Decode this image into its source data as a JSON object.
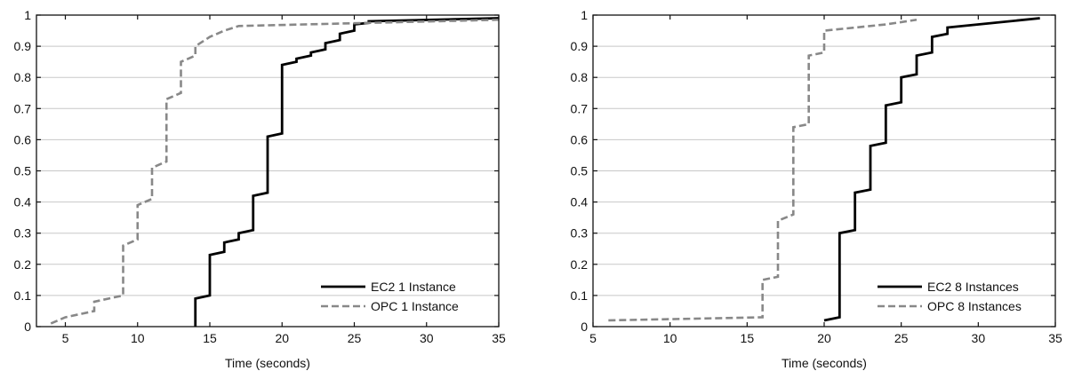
{
  "chart_data": [
    {
      "type": "line",
      "step": true,
      "xlabel": "Time (seconds)",
      "ylabel": "",
      "xlim": [
        3,
        35
      ],
      "ylim": [
        0,
        1
      ],
      "xticks": [
        5,
        10,
        15,
        20,
        25,
        30,
        35
      ],
      "yticks": [
        0,
        0.1,
        0.2,
        0.3,
        0.4,
        0.5,
        0.6,
        0.7,
        0.8,
        0.9,
        1
      ],
      "grid": "horizontal",
      "legend_position": "bottom-right",
      "series": [
        {
          "name": "EC2 1 Instance",
          "color": "#000000",
          "dash": "solid",
          "x": [
            14,
            14,
            15,
            15,
            16,
            16,
            17,
            17,
            18,
            18,
            19,
            19,
            20,
            20,
            21,
            21,
            22,
            22,
            23,
            23,
            24,
            24,
            25,
            25,
            26,
            26,
            35
          ],
          "y": [
            0,
            0.09,
            0.1,
            0.23,
            0.24,
            0.27,
            0.28,
            0.3,
            0.31,
            0.42,
            0.43,
            0.61,
            0.62,
            0.84,
            0.85,
            0.86,
            0.87,
            0.88,
            0.89,
            0.91,
            0.92,
            0.94,
            0.95,
            0.97,
            0.975,
            0.98,
            0.99
          ]
        },
        {
          "name": "OPC 1 Instance",
          "color": "#888888",
          "dash": "dashed",
          "x": [
            4,
            5,
            7,
            7,
            9,
            9,
            10,
            10,
            11,
            11,
            12,
            12,
            13,
            13,
            14,
            14,
            15,
            16,
            17,
            26,
            35
          ],
          "y": [
            0.01,
            0.03,
            0.05,
            0.08,
            0.1,
            0.26,
            0.28,
            0.39,
            0.41,
            0.51,
            0.53,
            0.73,
            0.75,
            0.85,
            0.87,
            0.9,
            0.93,
            0.95,
            0.965,
            0.975,
            0.985
          ]
        }
      ]
    },
    {
      "type": "line",
      "step": true,
      "xlabel": "Time (seconds)",
      "ylabel": "",
      "xlim": [
        5,
        35
      ],
      "ylim": [
        0,
        1
      ],
      "xticks": [
        5,
        10,
        15,
        20,
        25,
        30,
        35
      ],
      "yticks": [
        0,
        0.1,
        0.2,
        0.3,
        0.4,
        0.5,
        0.6,
        0.7,
        0.8,
        0.9,
        1
      ],
      "grid": "horizontal",
      "legend_position": "bottom-right",
      "series": [
        {
          "name": "EC2 8 Instances",
          "color": "#000000",
          "dash": "solid",
          "x": [
            20,
            21,
            21,
            22,
            22,
            23,
            23,
            24,
            24,
            25,
            25,
            26,
            26,
            27,
            27,
            28,
            28,
            34
          ],
          "y": [
            0.02,
            0.03,
            0.3,
            0.31,
            0.43,
            0.44,
            0.58,
            0.59,
            0.71,
            0.72,
            0.8,
            0.81,
            0.87,
            0.88,
            0.93,
            0.94,
            0.96,
            0.99
          ]
        },
        {
          "name": "OPC 8 Instances",
          "color": "#888888",
          "dash": "dashed",
          "x": [
            6,
            16,
            16,
            17,
            17,
            18,
            18,
            19,
            19,
            20,
            20,
            24,
            26
          ],
          "y": [
            0.02,
            0.03,
            0.15,
            0.16,
            0.34,
            0.36,
            0.64,
            0.65,
            0.87,
            0.88,
            0.95,
            0.97,
            0.985
          ]
        }
      ]
    }
  ]
}
